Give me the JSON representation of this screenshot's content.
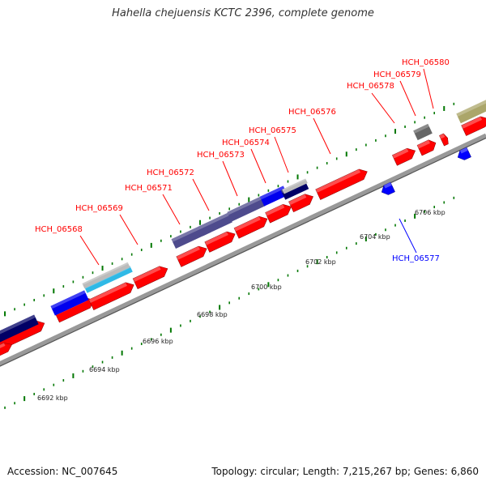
{
  "title": "Hahella chejuensis KCTC 2396, complete genome",
  "footer": {
    "accession": "Accession: NC_007645",
    "topology": "Topology: circular; Length: 7,215,267 bp; Genes: 6,860"
  },
  "colors": {
    "forward_gene": "#ff0000",
    "reverse_gene": "#0000ff",
    "backbone": "#999999",
    "ruler_tick": "#007700",
    "cog_dark": "#000066",
    "cog_purple": "#4e4b8d",
    "cog_blue": "#0000ee",
    "cog_cyan": "#2fb9e6",
    "cog_gray": "#bbbbbb",
    "cog_darkgray": "#666666",
    "cog_olive": "#aba66a"
  },
  "ruler_ticks": [
    "6692 kbp",
    "6694 kbp",
    "6696 kbp",
    "6698 kbp",
    "6700 kbp",
    "6702 kbp",
    "6704 kbp",
    "6706 kbp"
  ],
  "gene_labels": [
    {
      "name": "HCH_06568",
      "strand": "forward"
    },
    {
      "name": "HCH_06569",
      "strand": "forward"
    },
    {
      "name": "HCH_06571",
      "strand": "forward"
    },
    {
      "name": "HCH_06572",
      "strand": "forward"
    },
    {
      "name": "HCH_06573",
      "strand": "forward"
    },
    {
      "name": "HCH_06574",
      "strand": "forward"
    },
    {
      "name": "HCH_06575",
      "strand": "forward"
    },
    {
      "name": "HCH_06576",
      "strand": "forward"
    },
    {
      "name": "HCH_06578",
      "strand": "forward"
    },
    {
      "name": "HCH_06579",
      "strand": "forward"
    },
    {
      "name": "HCH_06580",
      "strand": "forward"
    },
    {
      "name": "HCH_06577",
      "strand": "reverse"
    }
  ]
}
